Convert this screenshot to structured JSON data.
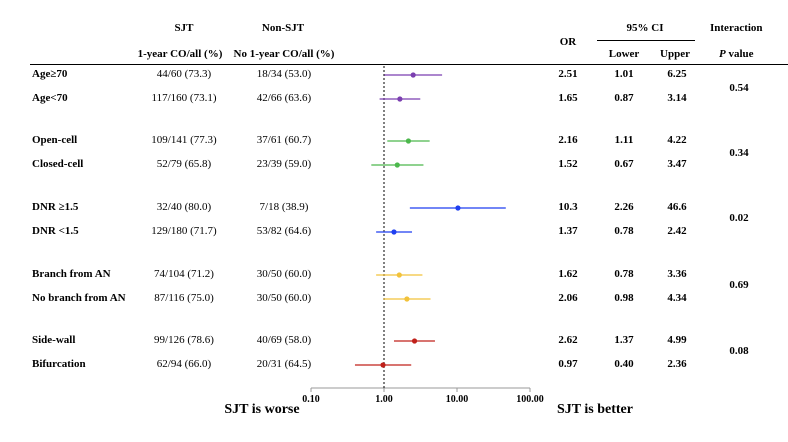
{
  "header": {
    "sjt_title": "SJT",
    "nonsjt_title": "Non-SJT",
    "sjt_sub": "1-year CO/all (%)",
    "nonsjt_sub": "No 1-year CO/all (%)",
    "or": "OR",
    "ci": "95% CI",
    "lower": "Lower",
    "upper": "Upper",
    "interaction": "Interaction",
    "p_italic": "P",
    "p_value": " value"
  },
  "rows": [
    {
      "label": "Age≥70",
      "sjt": "44/60 (73.3)",
      "nonsjt": "18/34 (53.0)",
      "or": "2.51",
      "lower": "1.01",
      "upper": "6.25"
    },
    {
      "label": "Age<70",
      "sjt": "117/160 (73.1)",
      "nonsjt": "42/66 (63.6)",
      "or": "1.65",
      "lower": "0.87",
      "upper": "3.14"
    },
    {
      "label": "Open-cell",
      "sjt": "109/141 (77.3)",
      "nonsjt": "37/61  (60.7)",
      "or": "2.16",
      "lower": "1.11",
      "upper": "4.22"
    },
    {
      "label": "Closed-cell",
      "sjt": "52/79 (65.8)",
      "nonsjt": "23/39 (59.0)",
      "or": "1.52",
      "lower": "0.67",
      "upper": "3.47"
    },
    {
      "label": "DNR ≥1.5",
      "sjt": "32/40 (80.0)",
      "nonsjt": "7/18 (38.9)",
      "or": "10.3",
      "lower": "2.26",
      "upper": "46.6"
    },
    {
      "label": "DNR <1.5",
      "sjt": "129/180 (71.7)",
      "nonsjt": "53/82 (64.6)",
      "or": "1.37",
      "lower": "0.78",
      "upper": "2.42"
    },
    {
      "label": "Branch from AN",
      "sjt": "74/104 (71.2)",
      "nonsjt": "30/50 (60.0)",
      "or": "1.62",
      "lower": "0.78",
      "upper": "3.36"
    },
    {
      "label": "No branch from AN",
      "sjt": "87/116 (75.0)",
      "nonsjt": "30/50 (60.0)",
      "or": "2.06",
      "lower": "0.98",
      "upper": "4.34"
    },
    {
      "label": "Side-wall",
      "sjt": "99/126 (78.6)",
      "nonsjt": "40/69 (58.0)",
      "or": "2.62",
      "lower": "1.37",
      "upper": "4.99"
    },
    {
      "label": "Bifurcation",
      "sjt": "62/94 (66.0)",
      "nonsjt": "20/31 (64.5)",
      "or": "0.97",
      "lower": "0.40",
      "upper": "2.36"
    }
  ],
  "interactions": [
    "0.54",
    "0.34",
    "0.02",
    "0.69",
    "0.08"
  ],
  "footer": {
    "worse": "SJT is worse",
    "better": "SJT is better"
  },
  "chart_data": {
    "type": "scatter",
    "subtype": "forest-plot",
    "x_scale": "log",
    "xlim": [
      0.1,
      100
    ],
    "x_ticks": [
      "0.10",
      "1.00",
      "10.00",
      "100.00"
    ],
    "reference_line": 1,
    "series": [
      {
        "name": "Age≥70",
        "or": 2.51,
        "lower": 1.01,
        "upper": 6.25,
        "color": "#7b3fb0"
      },
      {
        "name": "Age<70",
        "or": 1.65,
        "lower": 0.87,
        "upper": 3.14,
        "color": "#7b3fb0"
      },
      {
        "name": "Open-cell",
        "or": 2.16,
        "lower": 1.11,
        "upper": 4.22,
        "color": "#4cb84c"
      },
      {
        "name": "Closed-cell",
        "or": 1.52,
        "lower": 0.67,
        "upper": 3.47,
        "color": "#4cb84c"
      },
      {
        "name": "DNR ≥1.5",
        "or": 10.3,
        "lower": 2.26,
        "upper": 46.6,
        "color": "#1f3ff0"
      },
      {
        "name": "DNR <1.5",
        "or": 1.37,
        "lower": 0.78,
        "upper": 2.42,
        "color": "#1f3ff0"
      },
      {
        "name": "Branch from AN",
        "or": 1.62,
        "lower": 0.78,
        "upper": 3.36,
        "color": "#f2c23a"
      },
      {
        "name": "No branch from AN",
        "or": 2.06,
        "lower": 0.98,
        "upper": 4.34,
        "color": "#f2c23a"
      },
      {
        "name": "Side-wall",
        "or": 2.62,
        "lower": 1.37,
        "upper": 4.99,
        "color": "#c0201a"
      },
      {
        "name": "Bifurcation",
        "or": 0.97,
        "lower": 0.4,
        "upper": 2.36,
        "color": "#c0201a"
      }
    ]
  }
}
